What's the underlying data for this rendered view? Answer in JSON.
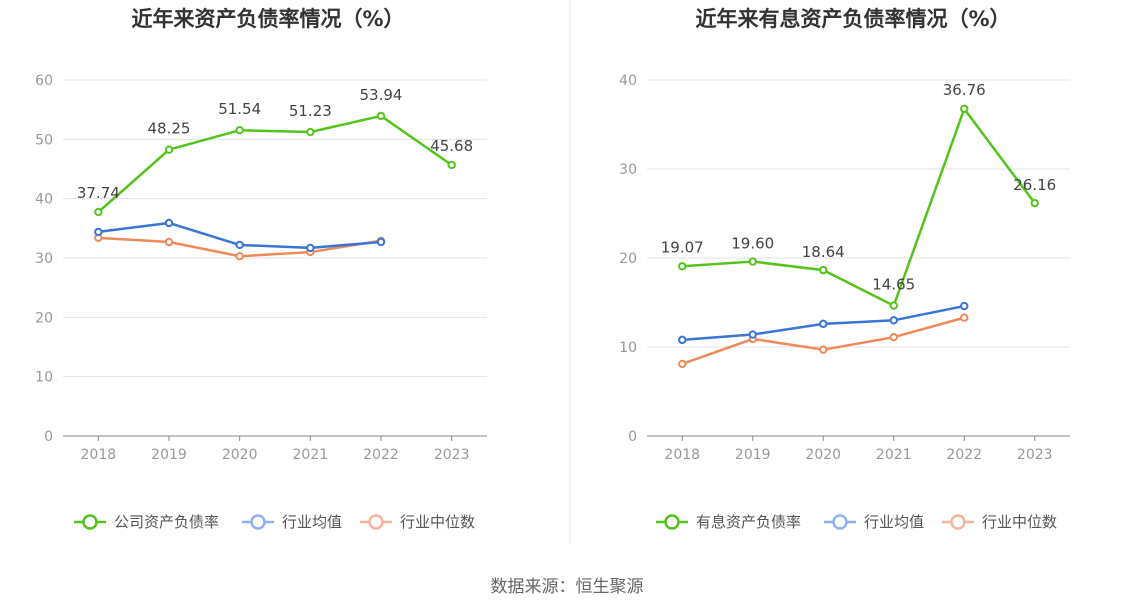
{
  "source": "数据来源：恒生聚源",
  "colors": {
    "company": "#52c41a",
    "avg": "#3a74d6",
    "median": "#ef8a5a",
    "legend_avg": "#8fb0f0",
    "legend_median": "#f7b49a"
  },
  "chart_data": [
    {
      "type": "line",
      "title": "近年来资产负债率情况（%）",
      "categories": [
        "2018",
        "2019",
        "2020",
        "2021",
        "2022",
        "2023"
      ],
      "ylim": [
        0,
        60
      ],
      "yticks": [
        0,
        10,
        20,
        30,
        40,
        50,
        60
      ],
      "grid": true,
      "legend_placement": "bottom",
      "series": [
        {
          "name": "公司资产负债率",
          "values": [
            37.74,
            48.25,
            51.54,
            51.23,
            53.94,
            45.68
          ],
          "labels": [
            "37.74",
            "48.25",
            "51.54",
            "51.23",
            "53.94",
            "45.68"
          ]
        },
        {
          "name": "行业均值",
          "values": [
            34.4,
            35.9,
            32.2,
            31.7,
            32.7,
            null
          ]
        },
        {
          "name": "行业中位数",
          "values": [
            33.4,
            32.7,
            30.3,
            31.0,
            32.9,
            null
          ]
        }
      ]
    },
    {
      "type": "line",
      "title": "近年来有息资产负债率情况（%）",
      "categories": [
        "2018",
        "2019",
        "2020",
        "2021",
        "2022",
        "2023"
      ],
      "ylim": [
        0,
        40
      ],
      "yticks": [
        0,
        10,
        20,
        30,
        40
      ],
      "grid": true,
      "legend_placement": "bottom",
      "series": [
        {
          "name": "有息资产负债率",
          "values": [
            19.07,
            19.6,
            18.64,
            14.65,
            36.76,
            26.16
          ],
          "labels": [
            "19.07",
            "19.60",
            "18.64",
            "14.65",
            "36.76",
            "26.16"
          ]
        },
        {
          "name": "行业均值",
          "values": [
            10.8,
            11.4,
            12.6,
            13.0,
            14.6,
            null
          ]
        },
        {
          "name": "行业中位数",
          "values": [
            8.1,
            10.9,
            9.7,
            11.1,
            13.3,
            null
          ]
        }
      ]
    }
  ]
}
